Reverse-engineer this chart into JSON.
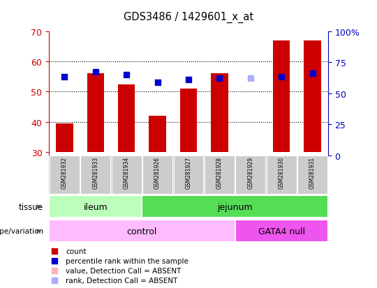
{
  "title": "GDS3486 / 1429601_x_at",
  "samples": [
    "GSM281932",
    "GSM281933",
    "GSM281934",
    "GSM281926",
    "GSM281927",
    "GSM281928",
    "GSM281929",
    "GSM281930",
    "GSM281931"
  ],
  "bar_values": [
    39.5,
    56.0,
    52.5,
    42.0,
    51.0,
    56.0,
    30.0,
    67.0,
    67.0
  ],
  "bar_colors": [
    "#cc0000",
    "#cc0000",
    "#cc0000",
    "#cc0000",
    "#cc0000",
    "#cc0000",
    "#ffb3b3",
    "#cc0000",
    "#cc0000"
  ],
  "dot_values": [
    55.0,
    56.5,
    55.5,
    53.0,
    54.0,
    54.5,
    54.5,
    55.0,
    56.0
  ],
  "dot_colors": [
    "#0000cc",
    "#0000cc",
    "#0000cc",
    "#0000cc",
    "#0000cc",
    "#0000cc",
    "#aaaaff",
    "#0000cc",
    "#0000cc"
  ],
  "ylim_left": [
    29,
    70
  ],
  "yticks_left": [
    30,
    40,
    50,
    60,
    70
  ],
  "ylim_right": [
    0,
    100
  ],
  "yticks_right": [
    0,
    25,
    50,
    75,
    100
  ],
  "yticklabels_right": [
    "0",
    "25",
    "50",
    "75",
    "100%"
  ],
  "tissue_groups": [
    {
      "label": "ileum",
      "start": 0,
      "end": 3,
      "color": "#bbffbb"
    },
    {
      "label": "jejunum",
      "start": 3,
      "end": 9,
      "color": "#55dd55"
    }
  ],
  "genotype_groups": [
    {
      "label": "control",
      "start": 0,
      "end": 6,
      "color": "#ffbbff"
    },
    {
      "label": "GATA4 null",
      "start": 6,
      "end": 9,
      "color": "#ee55ee"
    }
  ],
  "legend_items": [
    {
      "label": "count",
      "color": "#cc0000"
    },
    {
      "label": "percentile rank within the sample",
      "color": "#0000cc"
    },
    {
      "label": "value, Detection Call = ABSENT",
      "color": "#ffb3b3"
    },
    {
      "label": "rank, Detection Call = ABSENT",
      "color": "#aaaaff"
    }
  ],
  "bar_bottom": 30,
  "bar_width": 0.55,
  "background_color": "#ffffff",
  "left_tick_color": "#cc0000",
  "right_tick_color": "#0000bb"
}
